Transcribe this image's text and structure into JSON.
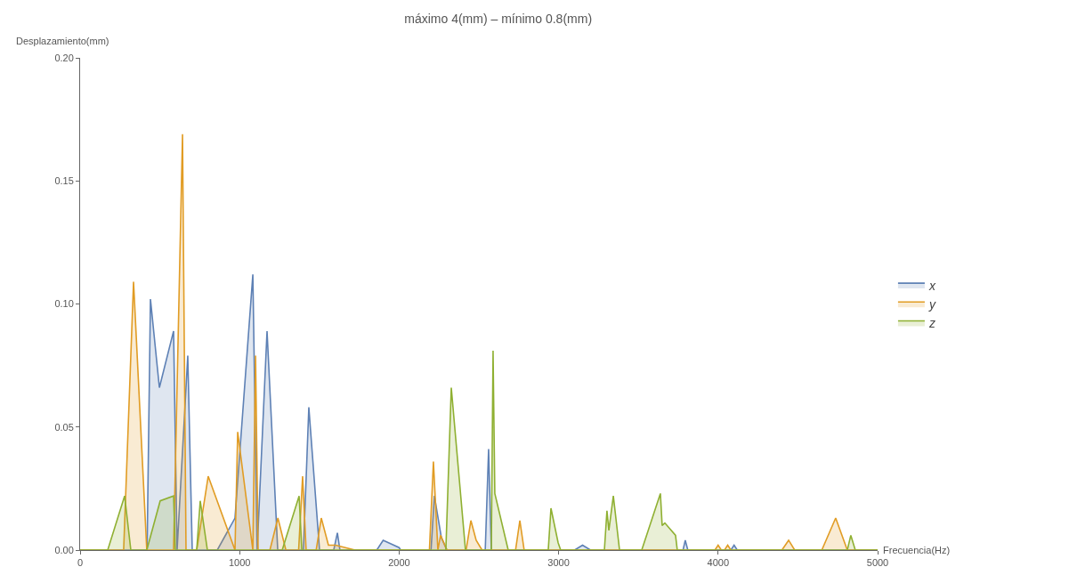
{
  "chart_data": {
    "type": "area",
    "title": "máximo 4(mm) – mínimo 0.8(mm)",
    "xlabel": "Frecuencia(Hz)",
    "ylabel": "Desplazamiento(mm)",
    "xlim": [
      0,
      5000
    ],
    "xticks": [
      0,
      1000,
      2000,
      3000,
      4000,
      5000
    ],
    "ylim": [
      0,
      0.2
    ],
    "yticks": [
      {
        "value": 0,
        "label": "0.00"
      },
      {
        "value": 0.05,
        "label": "0.05"
      },
      {
        "value": 0.1,
        "label": "0.10"
      },
      {
        "value": 0.15,
        "label": "0.15"
      },
      {
        "value": 0.2,
        "label": "0.20"
      }
    ],
    "grid": false,
    "legend": "right",
    "marker": "none",
    "line_style": "solid",
    "series": [
      {
        "name": "x",
        "color": "#5e81b5",
        "x": [
          0,
          420,
          441,
          497,
          586,
          608,
          675,
          703,
          860,
          971,
          1083,
          1110,
          1172,
          1239,
          1400,
          1434,
          1501,
          1590,
          1613,
          1629,
          1860,
          1900,
          2000,
          2010,
          2200,
          2221,
          2265,
          2300,
          2540,
          2561,
          2578,
          3100,
          3150,
          3200,
          3780,
          3794,
          3810,
          4080,
          4100,
          4120,
          5000
        ],
        "values": [
          0,
          0,
          0.102,
          0.066,
          0.089,
          0,
          0.079,
          0,
          0,
          0.013,
          0.112,
          0,
          0.089,
          0,
          0,
          0.058,
          0,
          0,
          0.007,
          0,
          0,
          0.004,
          0.001,
          0,
          0,
          0.022,
          0.005,
          0,
          0,
          0.041,
          0,
          0,
          0.002,
          0,
          0,
          0.004,
          0,
          0,
          0.002,
          0,
          0
        ]
      },
      {
        "name": "y",
        "color": "#e19c24",
        "x": [
          0,
          273,
          335,
          418,
          586,
          642,
          664,
          731,
          803,
          971,
          988,
          1083,
          1100,
          1116,
          1190,
          1240,
          1290,
          1370,
          1395,
          1417,
          1480,
          1512,
          1557,
          1602,
          1724,
          2190,
          2215,
          2243,
          2260,
          2300,
          2420,
          2450,
          2483,
          2520,
          2730,
          2757,
          2784,
          3980,
          4000,
          4020,
          4040,
          4060,
          4080,
          4400,
          4442,
          4480,
          4650,
          4737,
          4810,
          5000
        ],
        "values": [
          0,
          0,
          0.109,
          0,
          0,
          0.169,
          0,
          0,
          0.03,
          0,
          0.048,
          0,
          0.079,
          0,
          0,
          0.013,
          0,
          0,
          0.03,
          0,
          0,
          0.013,
          0.002,
          0.002,
          0,
          0,
          0.036,
          0,
          0.006,
          0,
          0,
          0.012,
          0.004,
          0,
          0,
          0.012,
          0,
          0,
          0.002,
          0,
          0,
          0.002,
          0,
          0,
          0.004,
          0,
          0,
          0.013,
          0,
          0
        ]
      },
      {
        "name": "z",
        "color": "#8fb032",
        "x": [
          0,
          173,
          279,
          318,
          418,
          502,
          586,
          597,
          731,
          753,
          798,
          1267,
          1373,
          1390,
          2293,
          2327,
          2416,
          2578,
          2589,
          2600,
          2684,
          2935,
          2952,
          2997,
          3013,
          3287,
          3303,
          3315,
          3343,
          3382,
          3521,
          3638,
          3649,
          3666,
          3733,
          3744,
          4810,
          4832,
          4860,
          5000
        ],
        "values": [
          0,
          0,
          0.022,
          0,
          0,
          0.02,
          0.022,
          0,
          0,
          0.02,
          0,
          0,
          0.022,
          0,
          0,
          0.066,
          0,
          0,
          0.081,
          0.023,
          0,
          0,
          0.017,
          0.003,
          0,
          0,
          0.016,
          0.008,
          0.022,
          0,
          0,
          0.023,
          0.01,
          0.011,
          0.006,
          0,
          0,
          0.006,
          0,
          0
        ]
      }
    ]
  }
}
